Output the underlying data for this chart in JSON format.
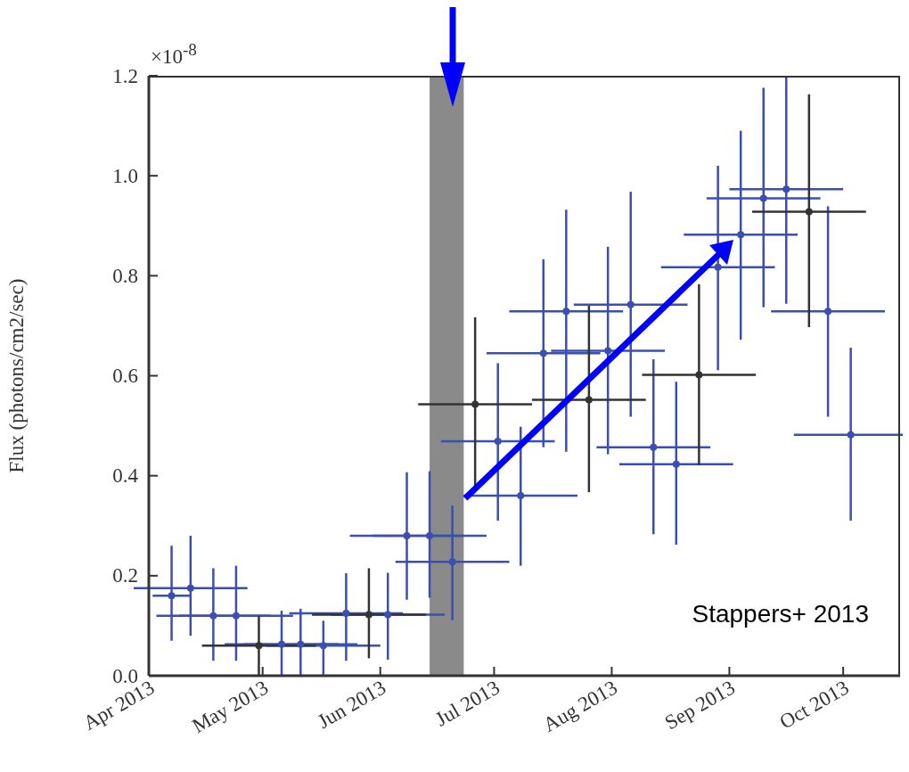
{
  "chart_data": {
    "type": "scatter",
    "ylabel": "Flux (photons/cm2/sec)",
    "marker": "circle",
    "annotations": [
      "×10$^{-8}$",
      "Stappers+ 2013"
    ],
    "xlim": [
      "2013-04-01",
      "2013-10-16"
    ],
    "xticks": [
      {
        "value": "2013-04-01",
        "label": "Apr 2013"
      },
      {
        "value": "2013-05-01",
        "label": "May 2013"
      },
      {
        "value": "2013-06-01",
        "label": "Jun 2013"
      },
      {
        "value": "2013-07-01",
        "label": "Jul 2013"
      },
      {
        "value": "2013-08-01",
        "label": "Aug 2013"
      },
      {
        "value": "2013-09-01",
        "label": "Sep 2013"
      },
      {
        "value": "2013-10-01",
        "label": "Oct 2013"
      }
    ],
    "ylim": [
      0,
      1.2
    ],
    "yticks": [
      {
        "value": 0,
        "label": "0.0"
      },
      0.2,
      0.4,
      0.6,
      0.8,
      {
        "value": 1,
        "label": "1.0"
      },
      1.2
    ],
    "bands": [
      {
        "axis": "x",
        "from": "2013-06-14",
        "to": "2013-06-23",
        "color": "#8a8a8a"
      }
    ],
    "series": [
      {
        "color": "#3a4fb0",
        "x": [
          "2013-04-07",
          "2013-04-12",
          "2013-04-18",
          "2013-04-24",
          "2013-05-06",
          "2013-05-11",
          "2013-05-17",
          "2013-05-23",
          "2013-06-03",
          "2013-06-08",
          "2013-06-14",
          "2013-06-20",
          "2013-07-02",
          "2013-07-08",
          "2013-07-14",
          "2013-07-20",
          "2013-07-31",
          "2013-08-06",
          "2013-08-12",
          "2013-08-18",
          "2013-08-29",
          "2013-09-04",
          "2013-09-10",
          "2013-09-16",
          "2013-09-27",
          "2013-10-03"
        ],
        "values": [
          0.16,
          0.175,
          0.12,
          0.12,
          0.063,
          0.063,
          0.06,
          0.125,
          0.122,
          0.28,
          0.28,
          0.228,
          0.469,
          0.36,
          0.645,
          0.729,
          0.65,
          0.742,
          0.457,
          0.423,
          0.817,
          0.882,
          0.955,
          0.973,
          0.729,
          0.482
        ],
        "errors": [
          [
            0.07,
            0.26
          ],
          [
            0.08,
            0.28
          ],
          [
            0.03,
            0.215
          ],
          [
            0.03,
            0.22
          ],
          [
            0,
            0.13
          ],
          [
            0,
            0.134
          ],
          [
            0,
            0.11
          ],
          [
            0.03,
            0.205
          ],
          [
            0.032,
            0.206
          ],
          [
            0.152,
            0.407
          ],
          [
            0.156,
            0.409
          ],
          [
            0.111,
            0.34
          ],
          [
            0.31,
            0.625
          ],
          [
            0.22,
            0.498
          ],
          [
            0.457,
            0.833
          ],
          [
            0.448,
            0.932
          ],
          [
            0.443,
            0.858
          ],
          [
            0.518,
            0.968
          ],
          [
            0.283,
            0.633
          ],
          [
            0.262,
            0.588
          ],
          [
            0.611,
            1.02
          ],
          [
            0.672,
            1.09
          ],
          [
            0.737,
            1.176
          ],
          [
            0.744,
            1.2
          ],
          [
            0.518,
            0.939
          ],
          [
            0.31,
            0.656
          ]
        ],
        "xerrors": [
          5,
          15,
          15,
          15,
          15,
          15,
          15,
          15,
          15,
          15,
          15,
          15,
          15,
          15,
          15,
          15,
          15,
          15,
          15,
          15,
          15,
          15,
          15,
          15,
          15,
          15
        ]
      },
      {
        "color": "#333333",
        "x": [
          "2013-04-30",
          "2013-05-29",
          "2013-06-26",
          "2013-07-26",
          "2013-08-24",
          "2013-09-22"
        ],
        "values": [
          0.06,
          0.122,
          0.543,
          0.552,
          0.602,
          0.928
        ],
        "errors": [
          [
            0,
            0.12
          ],
          [
            0.035,
            0.215
          ],
          [
            0.371,
            0.717
          ],
          [
            0.367,
            0.74
          ],
          [
            0.421,
            0.783
          ],
          [
            0.697,
            1.163
          ]
        ],
        "xerrors": [
          15,
          15,
          15,
          15,
          15,
          15
        ]
      }
    ]
  }
}
